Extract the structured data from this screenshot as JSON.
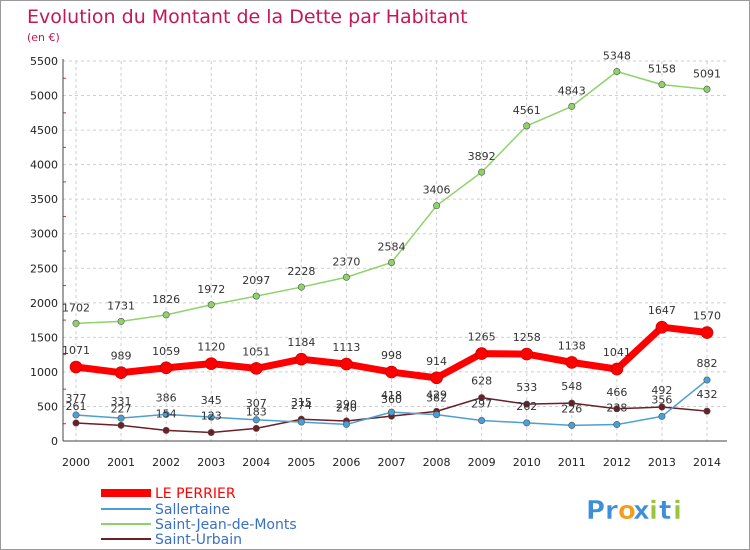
{
  "chart_data": {
    "type": "line",
    "title": "Evolution du Montant de la Dette par Habitant",
    "subtitle": "(en €)",
    "categories": [
      "2000",
      "2001",
      "2002",
      "2003",
      "2004",
      "2005",
      "2006",
      "2007",
      "2008",
      "2009",
      "2010",
      "2011",
      "2012",
      "2013",
      "2014"
    ],
    "y_ticks": [
      "0",
      "500",
      "1000",
      "1500",
      "2000",
      "2500",
      "3000",
      "3500",
      "4000",
      "4500",
      "5000",
      "5500"
    ],
    "ylim": [
      0,
      5500
    ],
    "grid": true,
    "legend_position": "bottom-left",
    "series": [
      {
        "name": "LE PERRIER",
        "color": "#ff0000",
        "values": [
          1071,
          989,
          1059,
          1120,
          1051,
          1184,
          1113,
          998,
          914,
          1265,
          1258,
          1138,
          1041,
          1647,
          1570
        ],
        "labels": [
          "1071",
          "989",
          "1059",
          "1120",
          "1051",
          "1184",
          "1113",
          "998",
          "914",
          "1265",
          "1258",
          "1138",
          "1041",
          "1647",
          "1570"
        ]
      },
      {
        "name": "Sallertaine",
        "color": "#4a9fd5",
        "values": [
          377,
          331,
          386,
          345,
          307,
          274,
          240,
          418,
          382,
          297,
          262,
          226,
          238,
          356,
          882
        ],
        "labels": [
          "377",
          "331",
          "386",
          "345",
          "307",
          "274",
          "240",
          "418",
          "382",
          "297",
          "262",
          "226",
          "238",
          "356",
          "882"
        ]
      },
      {
        "name": "Saint-Jean-de-Monts",
        "color": "#8ed36a",
        "values": [
          1702,
          1731,
          1826,
          1972,
          2097,
          2228,
          2370,
          2584,
          3406,
          3892,
          4561,
          4843,
          5348,
          5158,
          5091
        ],
        "labels": [
          "1702",
          "1731",
          "1826",
          "1972",
          "2097",
          "2228",
          "2370",
          "2584",
          "3406",
          "3892",
          "4561",
          "4843",
          "5348",
          "5158",
          "5091"
        ]
      },
      {
        "name": "Saint-Urbain",
        "color": "#6b1f26",
        "values": [
          261,
          227,
          154,
          123,
          183,
          315,
          290,
          360,
          429,
          628,
          533,
          548,
          466,
          492,
          432
        ],
        "labels": [
          "261",
          "227",
          "154",
          "123",
          "183",
          "315",
          "290",
          "360",
          "429",
          "628",
          "533",
          "548",
          "466",
          "492",
          "432"
        ]
      }
    ]
  },
  "logo": {
    "text": "Proxiti",
    "letters": [
      "P",
      "r",
      "o",
      "x",
      "i",
      "t",
      "i"
    ],
    "colors": [
      "#3d8fd9",
      "#3d8fd9",
      "#f39c1a",
      "#3d8fd9",
      "#9ac43c",
      "#3d8fd9",
      "#9ac43c"
    ]
  },
  "title_color": "#c2185b"
}
